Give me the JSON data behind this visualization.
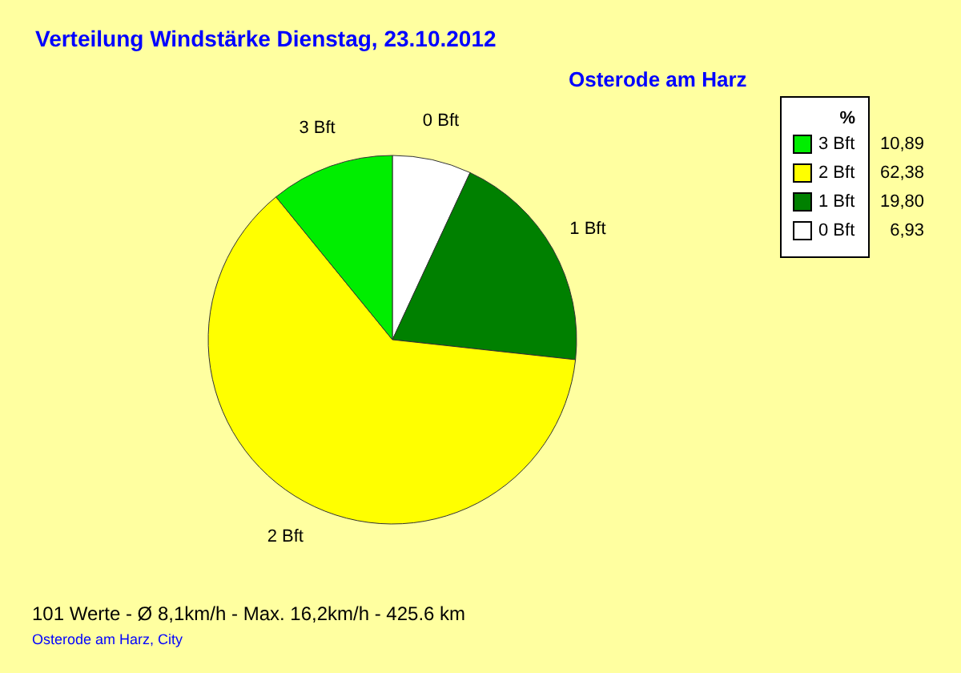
{
  "chart_data": {
    "type": "pie",
    "title": "Verteilung Windstärke  Dienstag, 23.10.2012",
    "subtitle": "Osterode am Harz",
    "legend_title": "%",
    "legend": "top right",
    "categories": [
      "0 Bft",
      "1 Bft",
      "2 Bft",
      "3 Bft"
    ],
    "values": [
      6.93,
      19.8,
      62.38,
      10.89
    ],
    "value_labels": [
      "6,93",
      "19,80",
      "62,38",
      "10,89"
    ],
    "colors": [
      "#ffffff",
      "#008000",
      "#ffff00",
      "#00ee00"
    ],
    "annotations": [
      "101 Werte   -   Ø 8,1km/h  -  Max. 16,2km/h   -   425.6 km",
      "Osterode am Harz, City"
    ]
  }
}
